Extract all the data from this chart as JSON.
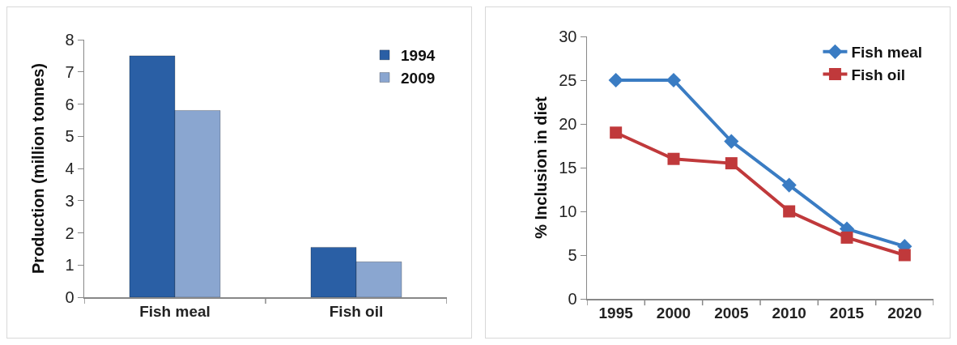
{
  "chart_data": [
    {
      "type": "bar",
      "ylabel": "Production (million tonnes)",
      "categories": [
        "Fish meal",
        "Fish oil"
      ],
      "series": [
        {
          "name": "1994",
          "color": "#2a5fa5",
          "values": [
            7.5,
            1.55
          ]
        },
        {
          "name": "2009",
          "color": "#8aa6d0",
          "values": [
            5.8,
            1.1
          ]
        }
      ],
      "ylim": [
        0,
        8
      ],
      "yticks": [
        0,
        1,
        2,
        3,
        4,
        5,
        6,
        7,
        8
      ],
      "grid": false,
      "legend": "top right"
    },
    {
      "type": "line",
      "ylabel": "% Inclusion in diet",
      "categories": [
        "1995",
        "2000",
        "2005",
        "2010",
        "2015",
        "2020"
      ],
      "series": [
        {
          "name": "Fish meal",
          "color": "#3a7cc3",
          "marker": "diamond",
          "values": [
            25,
            25,
            18,
            13,
            8,
            6
          ]
        },
        {
          "name": "Fish oil",
          "color": "#c0393b",
          "marker": "square",
          "values": [
            19,
            16,
            15.5,
            10,
            7,
            5
          ]
        }
      ],
      "ylim": [
        0,
        30
      ],
      "yticks": [
        0,
        5,
        10,
        15,
        20,
        25,
        30
      ],
      "grid": false,
      "legend": "top right",
      "line_style": "solid"
    }
  ]
}
